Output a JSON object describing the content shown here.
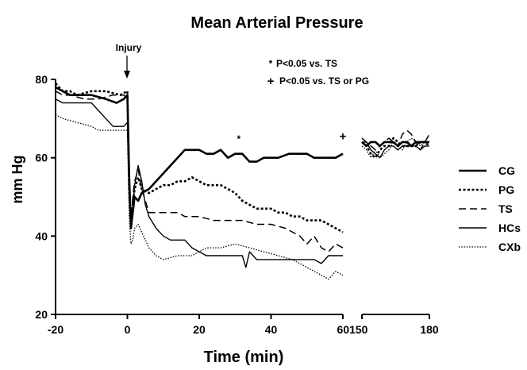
{
  "chart_data": {
    "type": "line",
    "title": "Mean Arterial Pressure",
    "xlabel": "Time (min)",
    "ylabel": "mm Hg",
    "ylim": [
      20,
      80
    ],
    "yticks": [
      20,
      40,
      60,
      80
    ],
    "xlim_left": [
      -20,
      60
    ],
    "xlim_right": [
      150,
      180
    ],
    "xticks_left": [
      -20,
      0,
      20,
      40
    ],
    "xtick_break_label": "60150",
    "xticks_right": [
      180
    ],
    "grid": false,
    "legend_position": "right",
    "annotations": {
      "injury_label": "Injury",
      "stat_note_star_symbol": "*",
      "stat_note_star_text": "P<0.05 vs. TS",
      "stat_note_plus_symbol": "+",
      "stat_note_plus_text": "P<0.05 vs. TS or PG",
      "marker_star": {
        "symbol": "*",
        "x": 31,
        "y": 64
      },
      "marker_plus": {
        "symbol": "+",
        "x": 60,
        "y": 64.5
      },
      "injury_x": 0
    },
    "series": [
      {
        "name": "CG",
        "style": "solid-thick",
        "segment_left": [
          [
            -20,
            78
          ],
          [
            -18,
            77
          ],
          [
            -16,
            76
          ],
          [
            -10,
            76
          ],
          [
            -6,
            75
          ],
          [
            -3,
            74
          ],
          [
            -1,
            75
          ],
          [
            0,
            76
          ],
          [
            0.5,
            55
          ],
          [
            1,
            42
          ],
          [
            1.5,
            46
          ],
          [
            2,
            50
          ],
          [
            3,
            49
          ],
          [
            4,
            51
          ],
          [
            6,
            52
          ],
          [
            8,
            54
          ],
          [
            10,
            56
          ],
          [
            12,
            58
          ],
          [
            14,
            60
          ],
          [
            16,
            62
          ],
          [
            20,
            62
          ],
          [
            22,
            61
          ],
          [
            24,
            61
          ],
          [
            26,
            62
          ],
          [
            28,
            60
          ],
          [
            30,
            61
          ],
          [
            32,
            61
          ],
          [
            34,
            59
          ],
          [
            36,
            59
          ],
          [
            38,
            60
          ],
          [
            40,
            60
          ],
          [
            42,
            60
          ],
          [
            45,
            61
          ],
          [
            48,
            61
          ],
          [
            50,
            61
          ],
          [
            52,
            60
          ],
          [
            56,
            60
          ],
          [
            58,
            60
          ],
          [
            60,
            61
          ]
        ],
        "segment_right": [
          [
            150,
            64
          ],
          [
            152,
            63
          ],
          [
            154,
            64
          ],
          [
            156,
            64
          ],
          [
            158,
            63
          ],
          [
            160,
            64
          ],
          [
            162,
            64
          ],
          [
            164,
            64
          ],
          [
            166,
            63
          ],
          [
            168,
            64
          ],
          [
            170,
            64
          ],
          [
            172,
            63
          ],
          [
            174,
            64
          ],
          [
            176,
            64
          ],
          [
            178,
            64
          ],
          [
            180,
            64
          ]
        ]
      },
      {
        "name": "PG",
        "style": "dotted-thick",
        "segment_left": [
          [
            -20,
            79
          ],
          [
            -18,
            77
          ],
          [
            -16,
            77
          ],
          [
            -14,
            76
          ],
          [
            -10,
            77
          ],
          [
            -6,
            77
          ],
          [
            -2,
            76
          ],
          [
            0,
            77
          ],
          [
            0.5,
            52
          ],
          [
            1,
            44
          ],
          [
            1.5,
            48
          ],
          [
            2,
            52
          ],
          [
            3,
            55
          ],
          [
            4,
            52
          ],
          [
            6,
            51
          ],
          [
            8,
            52
          ],
          [
            10,
            53
          ],
          [
            12,
            53
          ],
          [
            14,
            54
          ],
          [
            16,
            54
          ],
          [
            18,
            55
          ],
          [
            20,
            54
          ],
          [
            22,
            53
          ],
          [
            26,
            53
          ],
          [
            28,
            52
          ],
          [
            30,
            51
          ],
          [
            32,
            49
          ],
          [
            34,
            48
          ],
          [
            36,
            47
          ],
          [
            40,
            47
          ],
          [
            42,
            46
          ],
          [
            44,
            46
          ],
          [
            46,
            45
          ],
          [
            48,
            45
          ],
          [
            50,
            44
          ],
          [
            54,
            44
          ],
          [
            56,
            43
          ],
          [
            58,
            42
          ],
          [
            60,
            41
          ]
        ],
        "segment_right": [
          [
            150,
            64
          ],
          [
            152,
            63
          ],
          [
            154,
            61
          ],
          [
            156,
            60
          ],
          [
            158,
            62
          ],
          [
            160,
            63
          ],
          [
            162,
            63
          ],
          [
            164,
            65
          ],
          [
            166,
            64
          ],
          [
            168,
            63
          ],
          [
            170,
            63
          ],
          [
            172,
            63
          ],
          [
            174,
            63
          ],
          [
            176,
            64
          ],
          [
            178,
            64
          ],
          [
            180,
            63
          ]
        ]
      },
      {
        "name": "TS",
        "style": "dashed",
        "segment_left": [
          [
            -20,
            77
          ],
          [
            -18,
            76
          ],
          [
            -16,
            76
          ],
          [
            -12,
            75
          ],
          [
            -8,
            75
          ],
          [
            -4,
            76
          ],
          [
            -1,
            76
          ],
          [
            0,
            75
          ],
          [
            0.5,
            50
          ],
          [
            1,
            43
          ],
          [
            1.5,
            50
          ],
          [
            2,
            54
          ],
          [
            3,
            57
          ],
          [
            4,
            52
          ],
          [
            5,
            49
          ],
          [
            6,
            46
          ],
          [
            10,
            46
          ],
          [
            14,
            46
          ],
          [
            16,
            45
          ],
          [
            20,
            45
          ],
          [
            24,
            44
          ],
          [
            28,
            44
          ],
          [
            32,
            44
          ],
          [
            36,
            43
          ],
          [
            40,
            43
          ],
          [
            44,
            42
          ],
          [
            48,
            40
          ],
          [
            50,
            38
          ],
          [
            52,
            40
          ],
          [
            54,
            37
          ],
          [
            56,
            36
          ],
          [
            58,
            38
          ],
          [
            60,
            37
          ]
        ],
        "segment_right": [
          [
            150,
            65
          ],
          [
            152,
            64
          ],
          [
            154,
            63
          ],
          [
            156,
            62
          ],
          [
            158,
            63
          ],
          [
            160,
            64
          ],
          [
            162,
            65
          ],
          [
            164,
            64
          ],
          [
            166,
            63
          ],
          [
            168,
            66
          ],
          [
            170,
            67
          ],
          [
            172,
            66
          ],
          [
            174,
            64
          ],
          [
            176,
            62
          ],
          [
            178,
            64
          ],
          [
            180,
            66
          ]
        ]
      },
      {
        "name": "HCs",
        "style": "solid-thin",
        "segment_left": [
          [
            -20,
            75
          ],
          [
            -18,
            74
          ],
          [
            -14,
            74
          ],
          [
            -10,
            74
          ],
          [
            -8,
            72
          ],
          [
            -6,
            70
          ],
          [
            -4,
            68
          ],
          [
            -1,
            68
          ],
          [
            0,
            69
          ],
          [
            0.5,
            50
          ],
          [
            1,
            42
          ],
          [
            1.5,
            47
          ],
          [
            2,
            53
          ],
          [
            3,
            58
          ],
          [
            4,
            54
          ],
          [
            5,
            48
          ],
          [
            6,
            45
          ],
          [
            8,
            42
          ],
          [
            10,
            40
          ],
          [
            12,
            39
          ],
          [
            16,
            39
          ],
          [
            18,
            37
          ],
          [
            20,
            36
          ],
          [
            22,
            35
          ],
          [
            28,
            35
          ],
          [
            32,
            35
          ],
          [
            33,
            32
          ],
          [
            34,
            36
          ],
          [
            36,
            34
          ],
          [
            40,
            34
          ],
          [
            44,
            34
          ],
          [
            48,
            34
          ],
          [
            52,
            34
          ],
          [
            54,
            33
          ],
          [
            56,
            35
          ],
          [
            58,
            35
          ],
          [
            60,
            35
          ]
        ],
        "segment_right": [
          [
            150,
            64
          ],
          [
            152,
            64
          ],
          [
            154,
            62
          ],
          [
            156,
            61
          ],
          [
            158,
            60
          ],
          [
            160,
            62
          ],
          [
            162,
            63
          ],
          [
            164,
            63
          ],
          [
            166,
            62
          ],
          [
            168,
            63
          ],
          [
            170,
            63
          ],
          [
            172,
            63
          ],
          [
            174,
            63
          ],
          [
            176,
            62
          ],
          [
            178,
            63
          ],
          [
            180,
            63
          ]
        ]
      },
      {
        "name": "CXb",
        "style": "dotted-thin",
        "segment_left": [
          [
            -20,
            71
          ],
          [
            -18,
            70
          ],
          [
            -14,
            69
          ],
          [
            -10,
            68
          ],
          [
            -8,
            67
          ],
          [
            -4,
            67
          ],
          [
            -1,
            67
          ],
          [
            0,
            67
          ],
          [
            0.5,
            45
          ],
          [
            1,
            38
          ],
          [
            1.5,
            39
          ],
          [
            2,
            42
          ],
          [
            3,
            43
          ],
          [
            4,
            41
          ],
          [
            6,
            37
          ],
          [
            8,
            35
          ],
          [
            10,
            34
          ],
          [
            14,
            35
          ],
          [
            18,
            35
          ],
          [
            22,
            37
          ],
          [
            26,
            37
          ],
          [
            30,
            38
          ],
          [
            34,
            37
          ],
          [
            38,
            36
          ],
          [
            42,
            35
          ],
          [
            46,
            34
          ],
          [
            50,
            32
          ],
          [
            52,
            31
          ],
          [
            54,
            30
          ],
          [
            56,
            29
          ],
          [
            58,
            31
          ],
          [
            60,
            30
          ]
        ],
        "segment_right": [
          [
            150,
            63
          ],
          [
            152,
            62
          ],
          [
            154,
            60
          ],
          [
            156,
            62
          ],
          [
            158,
            60
          ],
          [
            160,
            61
          ],
          [
            162,
            62
          ],
          [
            164,
            64
          ],
          [
            166,
            63
          ],
          [
            168,
            62
          ],
          [
            170,
            64
          ],
          [
            172,
            65
          ],
          [
            174,
            64
          ],
          [
            176,
            63
          ],
          [
            178,
            64
          ],
          [
            180,
            64
          ]
        ]
      }
    ]
  }
}
